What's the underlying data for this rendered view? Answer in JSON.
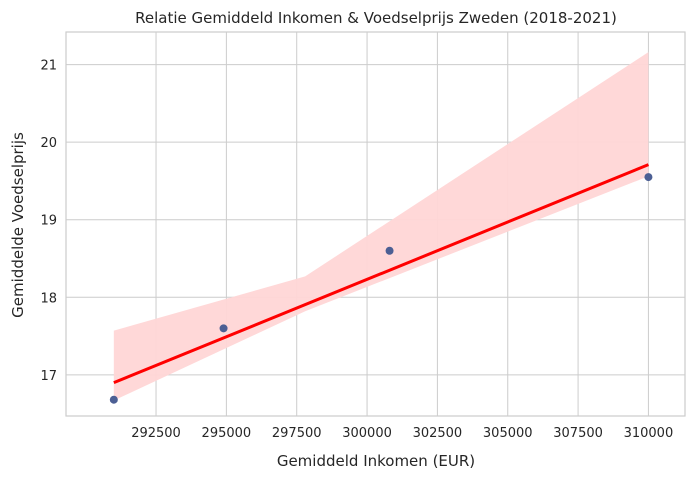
{
  "chart_data": {
    "type": "scatter",
    "title": "Relatie Gemiddeld Inkomen & Voedselprijs Zweden (2018-2021)",
    "xlabel": "Gemiddeld Inkomen (EUR)",
    "ylabel": "Gemiddelde Voedselprijs",
    "xlim": [
      289300,
      311300
    ],
    "ylim": [
      16.47,
      21.42
    ],
    "x_ticks": [
      292500,
      295000,
      297500,
      300000,
      302500,
      305000,
      307500,
      310000
    ],
    "x_tick_labels": [
      "292500",
      "295000",
      "297500",
      "300000",
      "302500",
      "305000",
      "307500",
      "310000"
    ],
    "y_ticks": [
      17,
      18,
      19,
      20,
      21
    ],
    "y_tick_labels": [
      "17",
      "18",
      "19",
      "20",
      "21"
    ],
    "grid": true,
    "points": {
      "x": [
        291000,
        294900,
        300800,
        310000
      ],
      "y": [
        16.68,
        17.6,
        18.6,
        19.55
      ]
    },
    "regression": {
      "x": [
        291000,
        310000
      ],
      "y": [
        16.9,
        19.71
      ]
    },
    "confidence_band": {
      "x": [
        291000,
        297800,
        310000
      ],
      "upper": [
        17.57,
        18.27,
        21.16
      ],
      "lower": [
        16.67,
        17.82,
        19.56
      ]
    },
    "colors": {
      "points": "#4c5f94",
      "line": "#ff0000",
      "band": "#ffd6d6",
      "grid": "#cccccc",
      "axes": "#cccccc"
    }
  }
}
